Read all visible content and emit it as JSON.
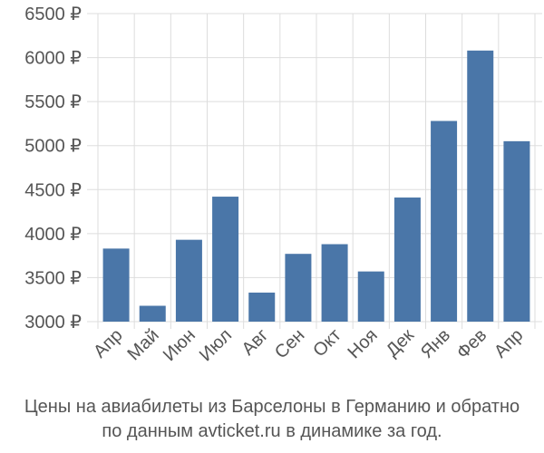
{
  "chart_data": {
    "type": "bar",
    "categories": [
      "Апр",
      "Май",
      "Июн",
      "Июл",
      "Авг",
      "Сен",
      "Окт",
      "Ноя",
      "Дек",
      "Янв",
      "Фев",
      "Апр"
    ],
    "values": [
      3830,
      3180,
      3930,
      4420,
      3330,
      3770,
      3880,
      3570,
      4410,
      5280,
      6080,
      5050
    ],
    "ylim": [
      3000,
      6500
    ],
    "yticks": [
      3000,
      3500,
      4000,
      4500,
      5000,
      5500,
      6000,
      6500
    ],
    "ytick_labels": [
      "3000 ₽",
      "3500 ₽",
      "4000 ₽",
      "4500 ₽",
      "5000 ₽",
      "5500 ₽",
      "6000 ₽",
      "6500 ₽"
    ],
    "grid": true,
    "bar_color": "#4a76a8",
    "caption_line1": "Цены на авиабилеты из Барселоны в Германию и обратно",
    "caption_line2": "по данным avticket.ru в динамике за год."
  }
}
